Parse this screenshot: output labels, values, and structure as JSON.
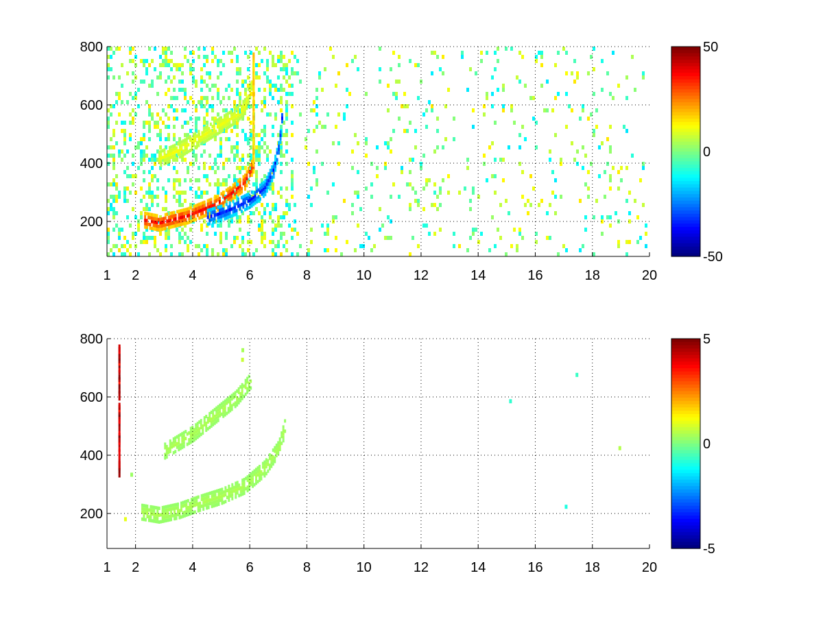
{
  "chart_data": [
    {
      "type": "heatmap",
      "title": "",
      "xlabel": "",
      "ylabel": "",
      "xlim": [
        1,
        20
      ],
      "ylim": [
        80,
        800
      ],
      "xticks": [
        1,
        2,
        4,
        6,
        8,
        10,
        12,
        14,
        16,
        18,
        20
      ],
      "yticks": [
        200,
        400,
        600,
        800
      ],
      "grid": true,
      "colormap": "jet",
      "clim": [
        -50,
        50
      ],
      "colorbar_ticks": [
        -50,
        0,
        50
      ],
      "features": [
        {
          "name": "upper band",
          "x": [
            2.8,
            3.5,
            4.0,
            4.5,
            5.0,
            5.5,
            5.8,
            6.0,
            6.1
          ],
          "y": [
            420,
            450,
            480,
            510,
            540,
            570,
            600,
            660,
            720
          ],
          "value": 12
        },
        {
          "name": "main band",
          "x": [
            2.3,
            2.8,
            3.2,
            3.8,
            4.3,
            4.8,
            5.3,
            5.8,
            6.1
          ],
          "y": [
            210,
            200,
            210,
            225,
            245,
            265,
            300,
            340,
            400
          ],
          "value": 40
        },
        {
          "name": "lower band",
          "x": [
            4.5,
            5.0,
            5.5,
            6.0,
            6.5,
            6.8,
            7.0,
            7.1
          ],
          "y": [
            220,
            235,
            255,
            280,
            320,
            380,
            460,
            560
          ],
          "value": -38
        },
        {
          "name": "vertical streak",
          "x": [
            6.1,
            6.1
          ],
          "y": [
            380,
            780
          ],
          "value": 20
        }
      ]
    },
    {
      "type": "heatmap",
      "title": "",
      "xlabel": "",
      "ylabel": "",
      "xlim": [
        1,
        20
      ],
      "ylim": [
        80,
        800
      ],
      "xticks": [
        1,
        2,
        4,
        6,
        8,
        10,
        12,
        14,
        16,
        18,
        20
      ],
      "yticks": [
        200,
        400,
        600,
        800
      ],
      "grid": true,
      "colormap": "jet",
      "clim": [
        -5,
        5
      ],
      "colorbar_ticks": [
        -5,
        0,
        5
      ],
      "features": [
        {
          "name": "upper band",
          "x": [
            3.0,
            3.5,
            4.0,
            4.5,
            5.0,
            5.5,
            6.0
          ],
          "y": [
            420,
            450,
            480,
            520,
            560,
            600,
            660
          ],
          "value": 0.5
        },
        {
          "name": "main band",
          "x": [
            2.2,
            2.8,
            3.5,
            4.2,
            5.0,
            5.8,
            6.5,
            7.0,
            7.2
          ],
          "y": [
            210,
            200,
            215,
            240,
            265,
            300,
            360,
            430,
            500
          ],
          "value": 0.5
        },
        {
          "name": "left edge",
          "x": [
            1.4,
            1.4
          ],
          "y": [
            340,
            800
          ],
          "value": 5
        }
      ]
    }
  ]
}
